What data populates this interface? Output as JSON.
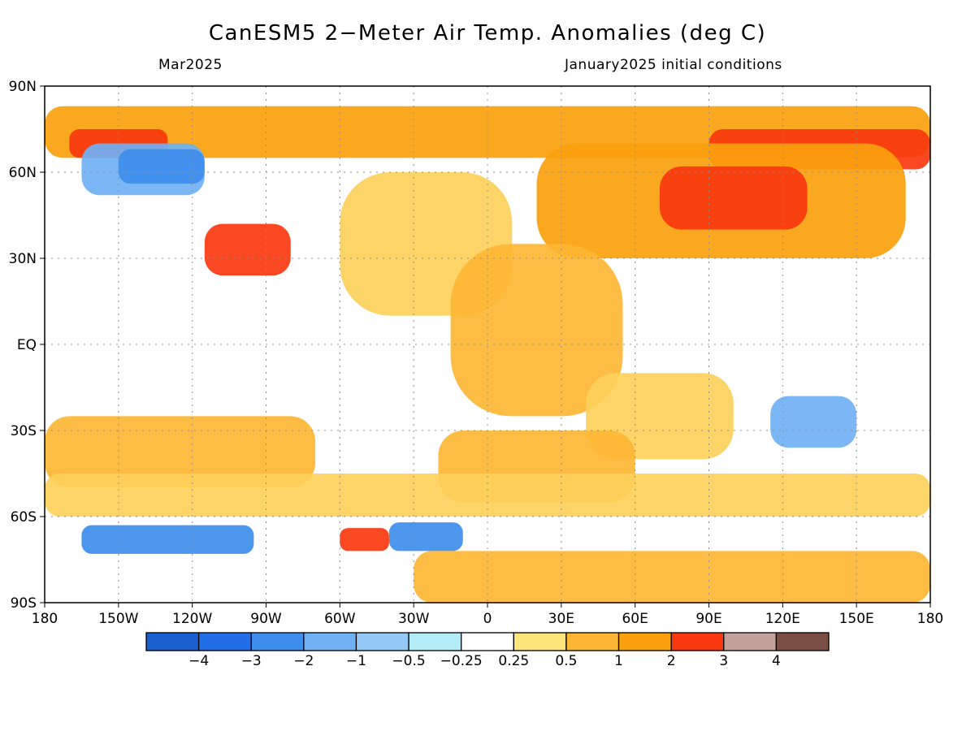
{
  "header": {
    "title": "CanESM5 2−Meter Air Temp. Anomalies (deg C)",
    "valid_month": "Mar2025",
    "initial_conditions": "January2025 initial conditions"
  },
  "map": {
    "projection": "cylindrical equidistant",
    "lon_range": [
      -180,
      180
    ],
    "lat_range": [
      -90,
      90
    ],
    "lat_ticks": [
      {
        "value": 90,
        "label": "90N"
      },
      {
        "value": 60,
        "label": "60N"
      },
      {
        "value": 30,
        "label": "30N"
      },
      {
        "value": 0,
        "label": "EQ"
      },
      {
        "value": -30,
        "label": "30S"
      },
      {
        "value": -60,
        "label": "60S"
      },
      {
        "value": -90,
        "label": "90S"
      }
    ],
    "lon_ticks": [
      {
        "value": -180,
        "label": "180"
      },
      {
        "value": -150,
        "label": "150W"
      },
      {
        "value": -120,
        "label": "120W"
      },
      {
        "value": -90,
        "label": "90W"
      },
      {
        "value": -60,
        "label": "60W"
      },
      {
        "value": -30,
        "label": "30W"
      },
      {
        "value": 0,
        "label": "0"
      },
      {
        "value": 30,
        "label": "30E"
      },
      {
        "value": 60,
        "label": "60E"
      },
      {
        "value": 90,
        "label": "90E"
      },
      {
        "value": 120,
        "label": "120E"
      },
      {
        "value": 150,
        "label": "150E"
      },
      {
        "value": 180,
        "label": "180"
      }
    ],
    "ocean_color": "#ffffff",
    "regions": [
      {
        "name": "arctic-warm-band",
        "lon": -180,
        "lat": 83,
        "w": 360,
        "h": 18,
        "color": "#fba10e"
      },
      {
        "name": "siberia-warm",
        "lon": 90,
        "lat": 75,
        "w": 90,
        "h": 14,
        "color": "#f8380f"
      },
      {
        "name": "greenland-warm",
        "lon": -170,
        "lat": 75,
        "w": 40,
        "h": 10,
        "color": "#f8380f"
      },
      {
        "name": "eurasia-warm",
        "lon": 20,
        "lat": 70,
        "w": 150,
        "h": 40,
        "color": "#fba10e"
      },
      {
        "name": "central-asia-hot",
        "lon": 70,
        "lat": 62,
        "w": 60,
        "h": 22,
        "color": "#f8380f"
      },
      {
        "name": "us-hot",
        "lon": -115,
        "lat": 42,
        "w": 35,
        "h": 18,
        "color": "#f8380f"
      },
      {
        "name": "canada-cold",
        "lon": -165,
        "lat": 70,
        "w": 50,
        "h": 18,
        "color": "#70b1f4"
      },
      {
        "name": "canada-cool",
        "lon": -150,
        "lat": 68,
        "w": 35,
        "h": 12,
        "color": "#3d8ded"
      },
      {
        "name": "atlantic-warm",
        "lon": -60,
        "lat": 60,
        "w": 70,
        "h": 50,
        "color": "#fdd05a"
      },
      {
        "name": "africa-warm",
        "lon": -15,
        "lat": 35,
        "w": 70,
        "h": 60,
        "color": "#fdb633"
      },
      {
        "name": "indian-warm",
        "lon": 40,
        "lat": -10,
        "w": 60,
        "h": 30,
        "color": "#fdd05a"
      },
      {
        "name": "south-pacific-warm",
        "lon": -180,
        "lat": -25,
        "w": 110,
        "h": 25,
        "color": "#fdb633"
      },
      {
        "name": "south-atlantic-warm",
        "lon": -20,
        "lat": -30,
        "w": 80,
        "h": 25,
        "color": "#fdb633"
      },
      {
        "name": "australia-cool",
        "lon": 115,
        "lat": -18,
        "w": 35,
        "h": 18,
        "color": "#70b1f4"
      },
      {
        "name": "southern-ocean-warm",
        "lon": -180,
        "lat": -45,
        "w": 360,
        "h": 15,
        "color": "#fdd05a"
      },
      {
        "name": "antarctic-cold",
        "lon": -165,
        "lat": -63,
        "w": 70,
        "h": 10,
        "color": "#3d8ded"
      },
      {
        "name": "antarctic-cold-2",
        "lon": -40,
        "lat": -62,
        "w": 30,
        "h": 10,
        "color": "#3d8ded"
      },
      {
        "name": "antarctic-warm",
        "lon": -30,
        "lat": -72,
        "w": 210,
        "h": 18,
        "color": "#fdb633"
      },
      {
        "name": "antarctic-hot",
        "lon": -60,
        "lat": -64,
        "w": 20,
        "h": 8,
        "color": "#f8380f"
      }
    ]
  },
  "colorbar": {
    "colors": [
      "#1a5fd0",
      "#226ee8",
      "#3d8ded",
      "#70b1f4",
      "#94c9f7",
      "#b3ecf7",
      "#ffffff",
      "#fde57c",
      "#fdb633",
      "#fba10e",
      "#f8380f",
      "#c4a29b",
      "#7a4e44"
    ],
    "labels": [
      "−4",
      "−3",
      "−2",
      "−1",
      "−0.5",
      "−0.25",
      "0.25",
      "0.5",
      "1",
      "2",
      "3",
      "4"
    ]
  }
}
